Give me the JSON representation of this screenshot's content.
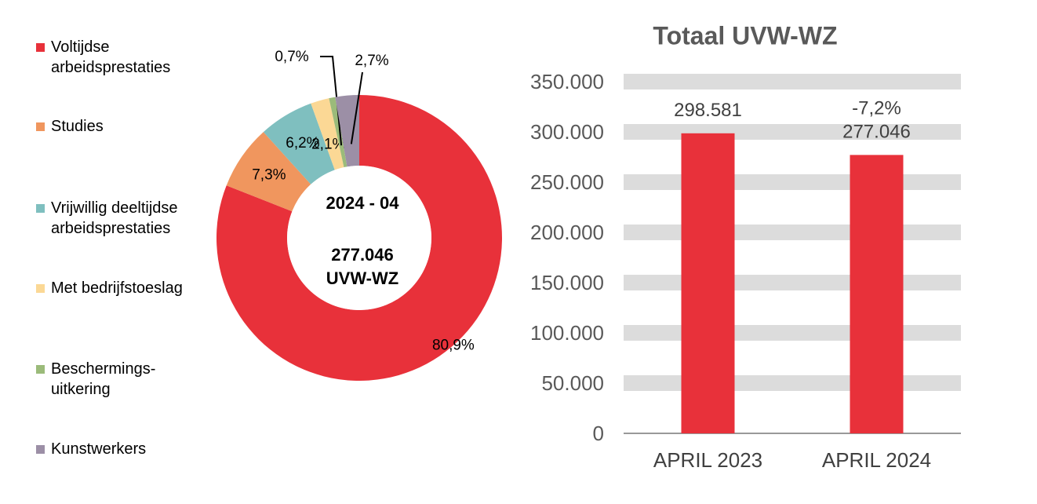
{
  "chart_data": [
    {
      "type": "donut",
      "categories": [
        "Voltijdse arbeidsprestaties",
        "Studies",
        "Vrijwillig deeltijdse arbeidsprestaties",
        "Met bedrijfstoeslag",
        "Beschermings-uitkering",
        "Kunstwerkers"
      ],
      "values": [
        80.9,
        7.3,
        6.2,
        2.1,
        0.7,
        2.7
      ],
      "value_labels": [
        "80,9%",
        "7,3%",
        "6,2%",
        "2,1%",
        "0,7%",
        "2,7%"
      ],
      "colors": [
        "#e8313a",
        "#f0965e",
        "#7fbfbf",
        "#fbd895",
        "#9bbb7a",
        "#9c8fa6"
      ],
      "center_text": [
        "2024 - 04",
        "277.046",
        "UVW-WZ"
      ],
      "legend": "left"
    },
    {
      "type": "bar",
      "title": "Totaal UVW-WZ",
      "categories": [
        "APRIL 2023",
        "APRIL 2024"
      ],
      "values": [
        298581,
        277046
      ],
      "value_labels": [
        "298.581",
        "277.046"
      ],
      "annotations": [
        "-7,2%"
      ],
      "color": "#e8313a",
      "ylim": [
        0,
        350000
      ],
      "yticks": [
        {
          "value": 0,
          "label": "0"
        },
        {
          "value": 50000,
          "label": "50.000"
        },
        {
          "value": 100000,
          "label": "100.000"
        },
        {
          "value": 150000,
          "label": "150.000"
        },
        {
          "value": 200000,
          "label": "200.000"
        },
        {
          "value": 250000,
          "label": "250.000"
        },
        {
          "value": 300000,
          "label": "300.000"
        },
        {
          "value": 350000,
          "label": "350.000"
        }
      ],
      "grid": true
    }
  ]
}
